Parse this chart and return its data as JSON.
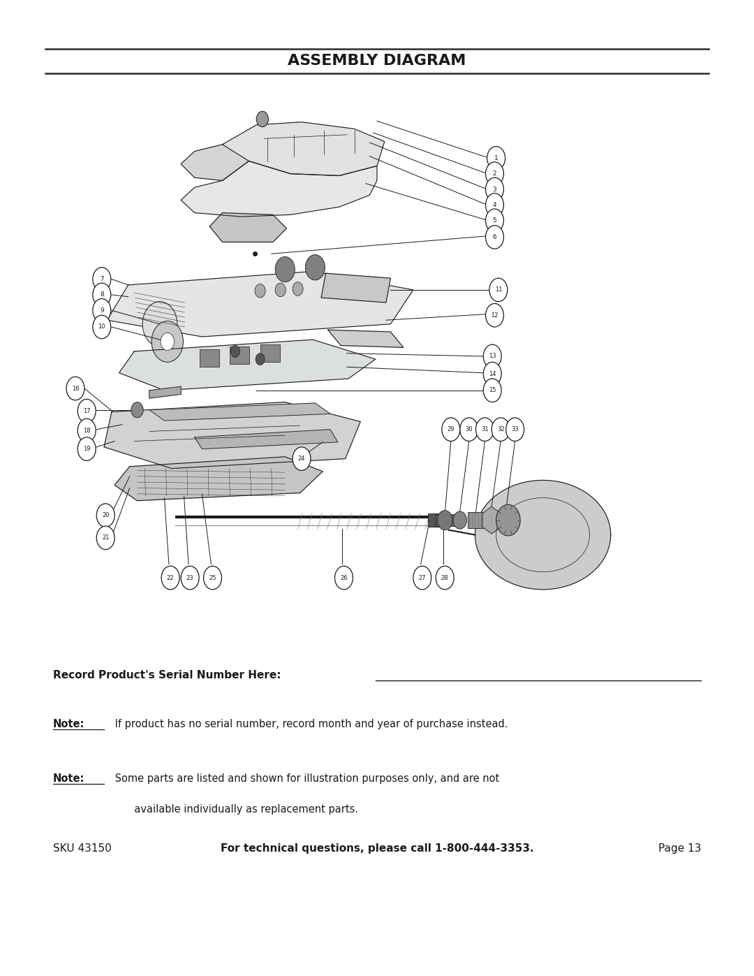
{
  "title": "ASSEMBLY DIAGRAM",
  "background_color": "#ffffff",
  "title_color": "#1a1a1a",
  "line_color": "#1a1a1a",
  "figsize": [
    10.8,
    13.97
  ],
  "dpi": 100,
  "serial_label": "Record Product's Serial Number Here:",
  "note1_bold": "Note:",
  "note1_text": " If product has no serial number, record month and year of purchase instead.",
  "note2_bold": "Note:",
  "note2_text": " Some parts are listed and shown for illustration purposes only, and are not",
  "note2_text2": "       available individually as replacement parts.",
  "footer_sku": "SKU 43150",
  "footer_center": "For technical questions, please call 1-800-444-3353.",
  "footer_page": "Page 13"
}
